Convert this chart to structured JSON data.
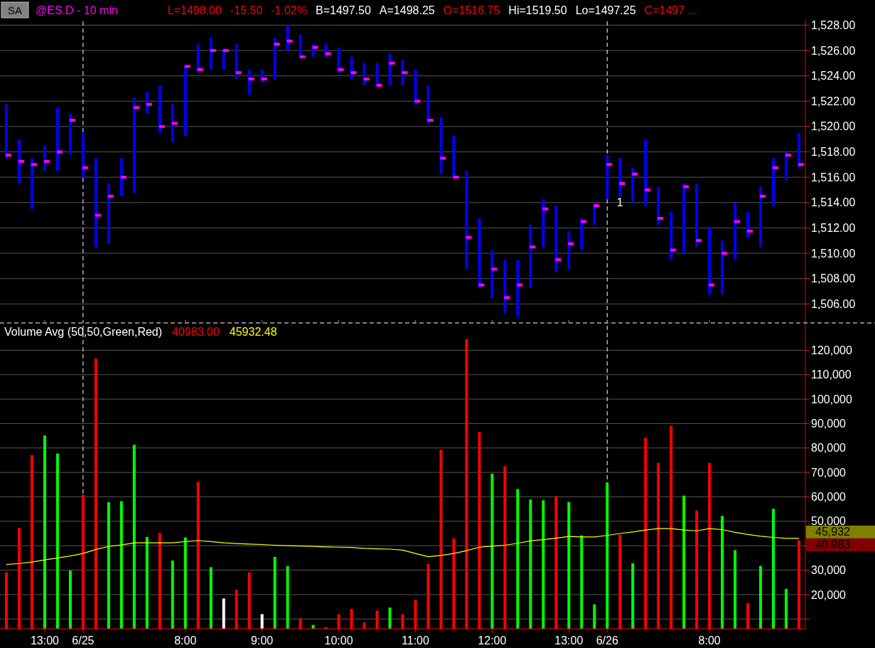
{
  "chart_data": [
    {
      "type": "bar",
      "title": "@ES.D - 10 min",
      "annotations": [
        "SA",
        "L=1498.00",
        "-15.50",
        "-1.02%",
        "B=1497.50",
        "A=1498.25",
        "O=1516.75",
        "Hi=1519.50",
        "Lo=1497.25",
        "C=1497 ...",
        "1"
      ],
      "categories": [
        null,
        null,
        null,
        "13:00",
        null,
        null,
        "6/25",
        null,
        null,
        null,
        null,
        null,
        null,
        null,
        "8:00",
        null,
        null,
        null,
        null,
        null,
        "9:00",
        null,
        null,
        null,
        null,
        null,
        "10:00",
        null,
        null,
        null,
        null,
        null,
        "11:00",
        null,
        null,
        null,
        null,
        null,
        "12:00",
        null,
        null,
        null,
        null,
        null,
        "13:00",
        null,
        null,
        "6/26",
        null,
        null,
        null,
        null,
        null,
        null,
        null,
        "8:00",
        null,
        null,
        null,
        null,
        null,
        null,
        null
      ],
      "series": [
        {
          "color": "#0000ff",
          "values": [
            4.25,
            3.5,
            4,
            2,
            5,
            3.25,
            3.5,
            7,
            4.75,
            3,
            7.5,
            1.75,
            3.75,
            3,
            5.5,
            2.25,
            2.5,
            1.5,
            2.75,
            2,
            1,
            3.25,
            2,
            1.75,
            1,
            1,
            2,
            1.75,
            1.75,
            1.75,
            2.5,
            2,
            2.75,
            3,
            4.5,
            3.25,
            7.75,
            5.5,
            3.75,
            4.25,
            4.5,
            5,
            3.75,
            5.25,
            3,
            2.5,
            1.75,
            3.5,
            3,
            2.75,
            5.25,
            3,
            3.75,
            5.5,
            5,
            5.25,
            4.25,
            4.5,
            2,
            4.75,
            3.75,
            2.25,
            2.75
          ],
          "base": [
            1517.5,
            1515.5,
            1513.5,
            1516.5,
            1516.5,
            1517.75,
            1516,
            1510.5,
            1510.75,
            1514.5,
            1514.75,
            1521,
            1519.5,
            1518.75,
            1519.25,
            1524.25,
            1524.5,
            1524.5,
            1523.75,
            1522.5,
            1523.5,
            1523.75,
            1526,
            1525.5,
            1525.5,
            1525.5,
            1524.25,
            1523.75,
            1523.25,
            1523.25,
            1523.25,
            1523.25,
            1521.75,
            1520.25,
            1516.25,
            1516,
            1508.75,
            1507.25,
            1506.5,
            1505.25,
            1505,
            1507.25,
            1510.5,
            1508.5,
            1508.75,
            1510.25,
            1512.25,
            1514.25,
            1514.5,
            1514,
            1513.75,
            1512.25,
            1509.5,
            1510,
            1510.5,
            1506.75,
            1506.75,
            1509.5,
            1511.25,
            1510.5,
            1513.75,
            1515.75,
            1516.75
          ]
        },
        {
          "type": "scatter",
          "color": "#ff00ff",
          "marker": "square",
          "values": [
            1517.75,
            1517.25,
            1517,
            1517.25,
            1518,
            1520.5,
            1516.75,
            1513,
            1514.5,
            1516,
            1521.5,
            1521.75,
            1520,
            1520.25,
            1524.75,
            1524.5,
            1526,
            1526,
            1524.25,
            1523.75,
            1523.75,
            1526.5,
            1526.75,
            1525.5,
            1526.25,
            1525.75,
            1524.5,
            1524.25,
            1523.75,
            1523.25,
            1525,
            1524.25,
            1522,
            1520.5,
            1517.5,
            1516,
            1511.25,
            1507.5,
            1508.75,
            1506.5,
            1507.5,
            1510.5,
            1513.5,
            1509.5,
            1510.75,
            1512.5,
            1513.75,
            1517,
            1515.5,
            1516.25,
            1515,
            1512.75,
            1510.25,
            1515.25,
            1511,
            1507.5,
            1510,
            1512.5,
            1511.75,
            1514.5,
            1516.75,
            1517.75,
            1517
          ]
        }
      ],
      "ylim": [
        1504.5,
        1528.3
      ],
      "yticks": [
        {
          "value": 1506,
          "label": "1,506.00"
        },
        {
          "value": 1508,
          "label": "1,508.00"
        },
        {
          "value": 1510,
          "label": "1,510.00"
        },
        {
          "value": 1512,
          "label": "1,512.00"
        },
        {
          "value": 1514,
          "label": "1,514.00"
        },
        {
          "value": 1516,
          "label": "1,516.00"
        },
        {
          "value": 1518,
          "label": "1,518.00"
        },
        {
          "value": 1520,
          "label": "1,520.00"
        },
        {
          "value": 1522,
          "label": "1,522.00"
        },
        {
          "value": 1524,
          "label": "1,524.00"
        },
        {
          "value": 1526,
          "label": "1,526.00"
        },
        {
          "value": 1528,
          "label": "1,528.00"
        }
      ],
      "ref_lines": [
        {
          "axis": "x",
          "value": "6/25",
          "color": "#ffffff",
          "line_style": "dashed"
        },
        {
          "axis": "x",
          "value": "6/26",
          "color": "#ffffff",
          "line_style": "dashed"
        }
      ],
      "grid": "y",
      "tick_labels": "y"
    },
    {
      "type": "bar",
      "title": "Volume Avg (50,50,Green,Red)",
      "annotations": [
        "40983.00",
        "45932.48",
        "45,932",
        "40,983"
      ],
      "categories": [
        null,
        null,
        null,
        "13:00",
        null,
        null,
        "6/25",
        null,
        null,
        null,
        null,
        null,
        null,
        null,
        "8:00",
        null,
        null,
        null,
        null,
        null,
        "9:00",
        null,
        null,
        null,
        null,
        null,
        "10:00",
        null,
        null,
        null,
        null,
        null,
        "11:00",
        null,
        null,
        null,
        null,
        null,
        "12:00",
        null,
        null,
        null,
        null,
        null,
        "13:00",
        null,
        null,
        "6/26",
        null,
        null,
        null,
        null,
        null,
        null,
        null,
        "8:00",
        null,
        null,
        null,
        null,
        null,
        null,
        null
      ],
      "series": [
        {
          "values": [
            29100,
            47300,
            77100,
            85100,
            77700,
            29800,
            60800,
            116600,
            57800,
            58200,
            81300,
            43600,
            45300,
            33900,
            43400,
            66100,
            31200,
            18400,
            22000,
            29100,
            12000,
            35400,
            31600,
            10300,
            7600,
            6700,
            12000,
            14100,
            8600,
            13500,
            14700,
            12000,
            17900,
            32500,
            79300,
            43000,
            124500,
            86500,
            69500,
            72500,
            63200,
            58900,
            58600,
            60300,
            57900,
            44200,
            16000,
            65800,
            44500,
            32800,
            84200,
            73900,
            89100,
            60500,
            54400,
            73900,
            52200,
            38200,
            16500,
            31700,
            55100,
            22300,
            42200
          ],
          "colors": [
            "#ff0000",
            "#ff0000",
            "#ff0000",
            "#00ff00",
            "#00ff00",
            "#00ff00",
            "#ff0000",
            "#ff0000",
            "#00ff00",
            "#00ff00",
            "#00ff00",
            "#00ff00",
            "#ff0000",
            "#00ff00",
            "#00ff00",
            "#ff0000",
            "#00ff00",
            "#ffffff",
            "#ff0000",
            "#ff0000",
            "#ffffff",
            "#00ff00",
            "#00ff00",
            "#ff0000",
            "#00ff00",
            "#ff0000",
            "#ff0000",
            "#ff0000",
            "#ff0000",
            "#ff0000",
            "#00ff00",
            "#ff0000",
            "#ff0000",
            "#ff0000",
            "#ff0000",
            "#ff0000",
            "#ff0000",
            "#ff0000",
            "#00ff00",
            "#ff0000",
            "#00ff00",
            "#00ff00",
            "#00ff00",
            "#ff0000",
            "#00ff00",
            "#00ff00",
            "#00ff00",
            "#00ff00",
            "#ff0000",
            "#00ff00",
            "#ff0000",
            "#ff0000",
            "#ff0000",
            "#00ff00",
            "#ff0000",
            "#ff0000",
            "#00ff00",
            "#00ff00",
            "#ff0000",
            "#00ff00",
            "#00ff00",
            "#00ff00",
            "#ff0000"
          ]
        },
        {
          "type": "line",
          "color": "#ffff00",
          "line_style": "solid",
          "values": [
            32300,
            32700,
            33300,
            34200,
            35000,
            35800,
            36800,
            38500,
            39700,
            40300,
            41200,
            41200,
            41200,
            41200,
            41700,
            42100,
            41700,
            41200,
            40900,
            40700,
            40500,
            40200,
            40000,
            39900,
            39700,
            39500,
            39400,
            39300,
            38900,
            38700,
            38600,
            38200,
            36800,
            35500,
            36000,
            36800,
            38000,
            39400,
            39800,
            40200,
            41000,
            42000,
            42500,
            43100,
            43800,
            43600,
            43600,
            44200,
            45000,
            45600,
            46400,
            47000,
            47000,
            46400,
            46100,
            47000,
            46600,
            45500,
            44600,
            43900,
            43400,
            43000,
            43000
          ]
        }
      ],
      "ylim": [
        6000,
        130000
      ],
      "yticks": [
        {
          "value": 10000,
          "label": null
        },
        {
          "value": 20000,
          "label": "20,000"
        },
        {
          "value": 30000,
          "label": "30,000"
        },
        {
          "value": 40000,
          "label": null
        },
        {
          "value": 50000,
          "label": "50,000"
        },
        {
          "value": 60000,
          "label": "60,000"
        },
        {
          "value": 70000,
          "label": "70,000"
        },
        {
          "value": 80000,
          "label": "80,000"
        },
        {
          "value": 90000,
          "label": "90,000"
        },
        {
          "value": 100000,
          "label": "100,000"
        },
        {
          "value": 110000,
          "label": "110,000"
        },
        {
          "value": 120000,
          "label": "120,000"
        }
      ],
      "ref_lines": [
        {
          "axis": "x",
          "value": "6/25",
          "color": "#ffffff",
          "line_style": "dashed"
        },
        {
          "axis": "x",
          "value": "6/26",
          "color": "#ffffff",
          "line_style": "dashed"
        }
      ],
      "grid": "y"
    }
  ]
}
